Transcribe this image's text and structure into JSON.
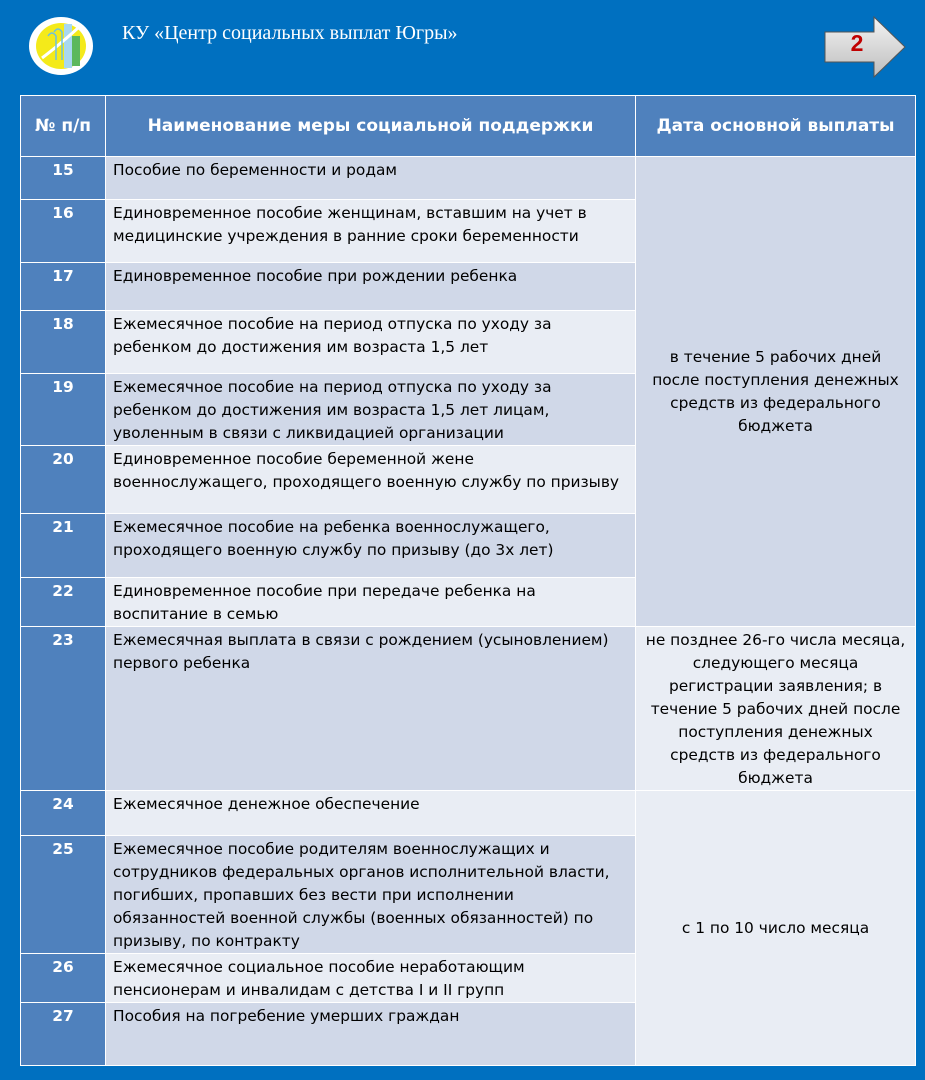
{
  "header": {
    "organization": "КУ «Центр социальных выплат Югры»",
    "page_number": "2",
    "logo": "organization-emblem"
  },
  "table": {
    "columns": [
      "№ п/п",
      "Наименование меры социальной поддержки",
      "Дата основной выплаты"
    ],
    "rows": [
      {
        "num": "15",
        "name": "Пособие по беременности и родам"
      },
      {
        "num": "16",
        "name": "Единовременное пособие женщинам, вставшим на учет в медицинские учреждения в ранние сроки беременности"
      },
      {
        "num": "17",
        "name": "Единовременное пособие при рождении ребенка"
      },
      {
        "num": "18",
        "name": "Ежемесячное пособие на период отпуска по уходу за ребенком до достижения им возраста 1,5 лет"
      },
      {
        "num": "19",
        "name": "Ежемесячное пособие на период отпуска по уходу за ребенком до достижения им возраста 1,5 лет лицам, уволенным  в связи с ликвидацией организации"
      },
      {
        "num": "20",
        "name": "Единовременное пособие беременной жене военнослужащего, проходящего военную службу по призыву"
      },
      {
        "num": "21",
        "name": "Ежемесячное пособие на ребенка военнослужащего, проходящего военную службу по призыву (до 3х лет)"
      },
      {
        "num": "22",
        "name": "Единовременное пособие при передаче ребенка на воспитание в семью"
      },
      {
        "num": "23",
        "name": "Ежемесячная выплата в связи с рождением (усыновлением) первого ребенка"
      },
      {
        "num": "24",
        "name": "Ежемесячное денежное обеспечение"
      },
      {
        "num": "25",
        "name": "Ежемесячное пособие родителям военнослужащих и сотрудников федеральных органов исполнительной власти, погибших, пропавших без вести при исполнении обязанностей военной службы (военных обязанностей) по призыву, по контракту"
      },
      {
        "num": "26",
        "name": "Ежемесячное социальное пособие неработающим пенсионерам и инвалидам с детства I и II групп"
      },
      {
        "num": "27",
        "name": "Пособия на погребение умерших граждан"
      }
    ],
    "dates": [
      "в течение 5 рабочих дней после поступления денежных средств из федерального бюджета",
      "не позднее 26-го числа месяца, следующего месяца регистрации заявления; в течение 5 рабочих дней после поступления денежных средств из федерального бюджета",
      "с 1 по 10 число месяца"
    ]
  },
  "colors": {
    "background": "#0070c0",
    "header": "#4f81bd",
    "row_dark": "#d0d8e8",
    "row_light": "#e9edf4",
    "page_number": "#c00000"
  }
}
